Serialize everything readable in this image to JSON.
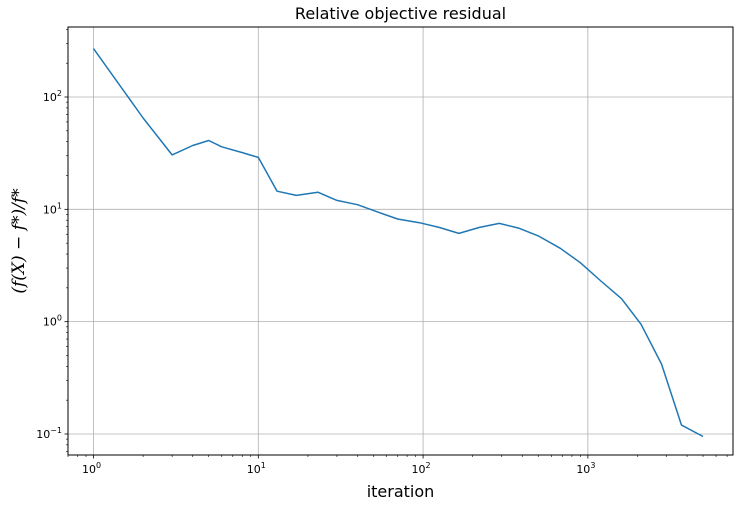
{
  "chart_data": {
    "type": "line",
    "title": "Relative objective residual",
    "xlabel": "iteration",
    "ylabel": "(f(X) − f*)/f*",
    "x_scale": "log",
    "y_scale": "log",
    "xlim": [
      0.7,
      7600
    ],
    "ylim": [
      0.065,
      420
    ],
    "grid": true,
    "x_ticks": [
      {
        "base": "10",
        "exp": "0",
        "value": 1
      },
      {
        "base": "10",
        "exp": "1",
        "value": 10
      },
      {
        "base": "10",
        "exp": "2",
        "value": 100
      },
      {
        "base": "10",
        "exp": "3",
        "value": 1000
      }
    ],
    "y_ticks": [
      {
        "base": "10",
        "exp": "−1",
        "value": 0.1
      },
      {
        "base": "10",
        "exp": "0",
        "value": 1
      },
      {
        "base": "10",
        "exp": "1",
        "value": 10
      },
      {
        "base": "10",
        "exp": "2",
        "value": 100
      }
    ],
    "series": [
      {
        "color": "#1f77b4",
        "x": [
          1,
          2,
          3,
          4,
          5,
          6,
          8,
          10,
          13,
          17,
          23,
          30,
          40,
          55,
          70,
          95,
          125,
          165,
          220,
          290,
          380,
          500,
          680,
          900,
          1200,
          1600,
          2100,
          2800,
          3700,
          5000
        ],
        "y": [
          270,
          65,
          30.5,
          37,
          41,
          36,
          32,
          29,
          14.5,
          13.3,
          14.2,
          12,
          11,
          9.3,
          8.2,
          7.6,
          6.9,
          6.1,
          6.9,
          7.5,
          6.8,
          5.8,
          4.5,
          3.35,
          2.3,
          1.6,
          0.95,
          0.42,
          0.12,
          0.095
        ]
      }
    ]
  }
}
